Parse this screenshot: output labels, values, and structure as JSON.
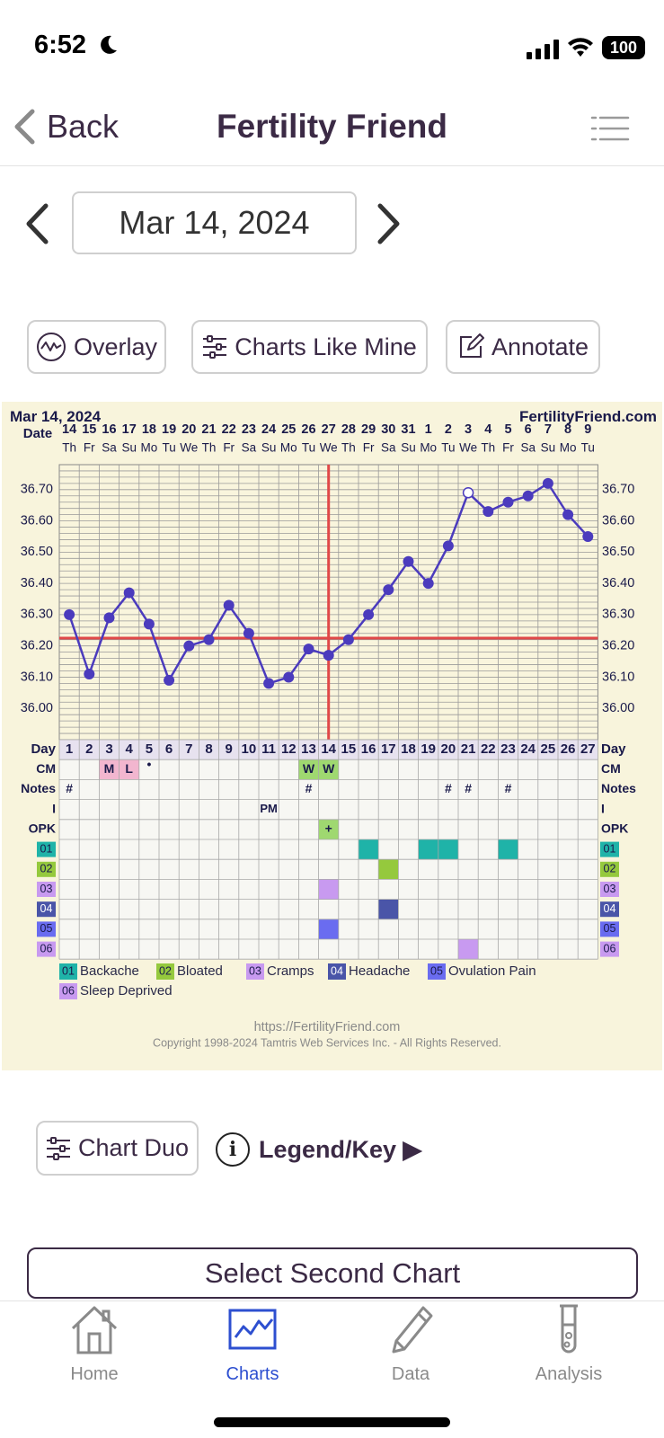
{
  "status_bar": {
    "time": "6:52",
    "battery": "100"
  },
  "nav": {
    "back_label": "Back",
    "title": "Fertility Friend"
  },
  "date_picker": {
    "value": "Mar 14, 2024"
  },
  "actions": {
    "overlay": "Overlay",
    "charts_like_mine": "Charts Like Mine",
    "annotate": "Annotate"
  },
  "chart": {
    "header_date": "Mar 14, 2024",
    "site": "FertilityFriend.com",
    "date_label": "Date",
    "day_label": "Day",
    "dates": [
      "14",
      "15",
      "16",
      "17",
      "18",
      "19",
      "20",
      "21",
      "22",
      "23",
      "24",
      "25",
      "26",
      "27",
      "28",
      "29",
      "30",
      "31",
      "1",
      "2",
      "3",
      "4",
      "5",
      "6",
      "7",
      "8",
      "9"
    ],
    "weekdays": [
      "Th",
      "Fr",
      "Sa",
      "Su",
      "Mo",
      "Tu",
      "We",
      "Th",
      "Fr",
      "Sa",
      "Su",
      "Mo",
      "Tu",
      "We",
      "Th",
      "Fr",
      "Sa",
      "Su",
      "Mo",
      "Tu",
      "We",
      "Th",
      "Fr",
      "Sa",
      "Su",
      "Mo",
      "Tu"
    ],
    "days": [
      "1",
      "2",
      "3",
      "4",
      "5",
      "6",
      "7",
      "8",
      "9",
      "10",
      "11",
      "12",
      "13",
      "14",
      "15",
      "16",
      "17",
      "18",
      "19",
      "20",
      "21",
      "22",
      "23",
      "24",
      "25",
      "26",
      "27"
    ],
    "y_ticks": [
      "36.70",
      "36.60",
      "36.50",
      "36.40",
      "36.30",
      "36.20",
      "36.10",
      "36.00"
    ],
    "row_labels": [
      "CM",
      "Notes",
      "I",
      "OPK",
      "01",
      "02",
      "03",
      "04",
      "05",
      "06"
    ],
    "cm": {
      "3": "M",
      "4": "L",
      "5": "•",
      "13": "W",
      "14": "W"
    },
    "notes": {
      "1": "#",
      "13": "#",
      "20": "#",
      "21": "#",
      "23": "#"
    },
    "intercourse": {
      "11": "PM"
    },
    "opk": {
      "14": "+"
    },
    "symptoms": {
      "01": [
        16,
        19,
        20,
        23
      ],
      "02": [
        17
      ],
      "03": [
        14
      ],
      "04": [
        17
      ],
      "05": [
        14
      ],
      "06": [
        21
      ]
    },
    "legend": [
      {
        "code": "01",
        "label": "Backache",
        "color": "#1fb3a8"
      },
      {
        "code": "02",
        "label": "Bloated",
        "color": "#95c93d"
      },
      {
        "code": "03",
        "label": "Cramps",
        "color": "#c89af0"
      },
      {
        "code": "04",
        "label": "Headache",
        "color": "#4a55a8"
      },
      {
        "code": "05",
        "label": "Ovulation Pain",
        "color": "#6a6cf0"
      },
      {
        "code": "06",
        "label": "Sleep Deprived",
        "color": "#c89af0"
      }
    ],
    "footer_url": "https://FertilityFriend.com",
    "copyright": "Copyright 1998-2024 Tamtris Web Services Inc. - All Rights Reserved."
  },
  "chart_data": {
    "type": "line",
    "x": [
      "1",
      "2",
      "3",
      "4",
      "5",
      "6",
      "7",
      "8",
      "9",
      "10",
      "11",
      "12",
      "13",
      "14",
      "15",
      "16",
      "17",
      "18",
      "19",
      "20",
      "21",
      "22",
      "23",
      "24",
      "25",
      "26",
      "27"
    ],
    "series": [
      {
        "values": [
          36.3,
          36.11,
          36.29,
          36.37,
          36.27,
          36.09,
          36.2,
          36.22,
          36.33,
          36.24,
          36.08,
          36.1,
          36.19,
          36.17,
          36.22,
          36.3,
          36.38,
          36.47,
          36.4,
          36.52,
          36.69,
          36.63,
          36.66,
          36.68,
          36.72,
          36.62,
          36.55
        ]
      }
    ],
    "open_point_day": 21,
    "coverline": 36.225,
    "ovulation_day": 14,
    "ylim": [
      35.9,
      36.78
    ],
    "grid": true,
    "colors": {
      "line": "#4b3bbd",
      "coverline": "#e04848"
    }
  },
  "bottom_actions": {
    "chart_duo": "Chart Duo",
    "legend_key": "Legend/Key ▶",
    "select_second": "Select Second Chart"
  },
  "tabs": [
    {
      "label": "Home",
      "icon": "home-icon"
    },
    {
      "label": "Charts",
      "icon": "chart-icon",
      "active": true
    },
    {
      "label": "Data",
      "icon": "pencil-icon"
    },
    {
      "label": "Analysis",
      "icon": "test-tube-icon"
    }
  ]
}
